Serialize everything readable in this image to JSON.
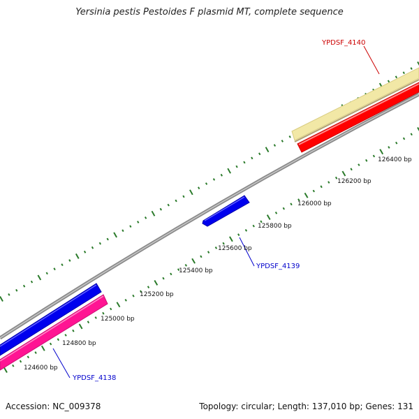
{
  "title": "Yersinia pestis Pestoides F plasmid MT, complete sequence",
  "footer": {
    "accession": "Accession: NC_009378",
    "summary": "Topology: circular; Length: 137,010 bp; Genes: 131"
  },
  "ruler": {
    "labels": [
      "124600 bp",
      "124800 bp",
      "125000 bp",
      "125200 bp",
      "125400 bp",
      "125600 bp",
      "125800 bp",
      "126000 bp",
      "126200 bp",
      "126400 bp"
    ]
  },
  "genes": [
    {
      "id": "YPDSF_4140",
      "color": "#cc0000"
    },
    {
      "id": "YPDSF_4139",
      "color": "#0000cc"
    },
    {
      "id": "YPDSF_4138",
      "color": "#0000cc"
    }
  ],
  "colors": {
    "backbone": "#888888",
    "tick": "#2a7a2a",
    "gene_blue": "#0000ee",
    "gene_red": "#ff0000",
    "gene_pink": "#ff1493",
    "gene_yellow": "#f0e6a0"
  }
}
